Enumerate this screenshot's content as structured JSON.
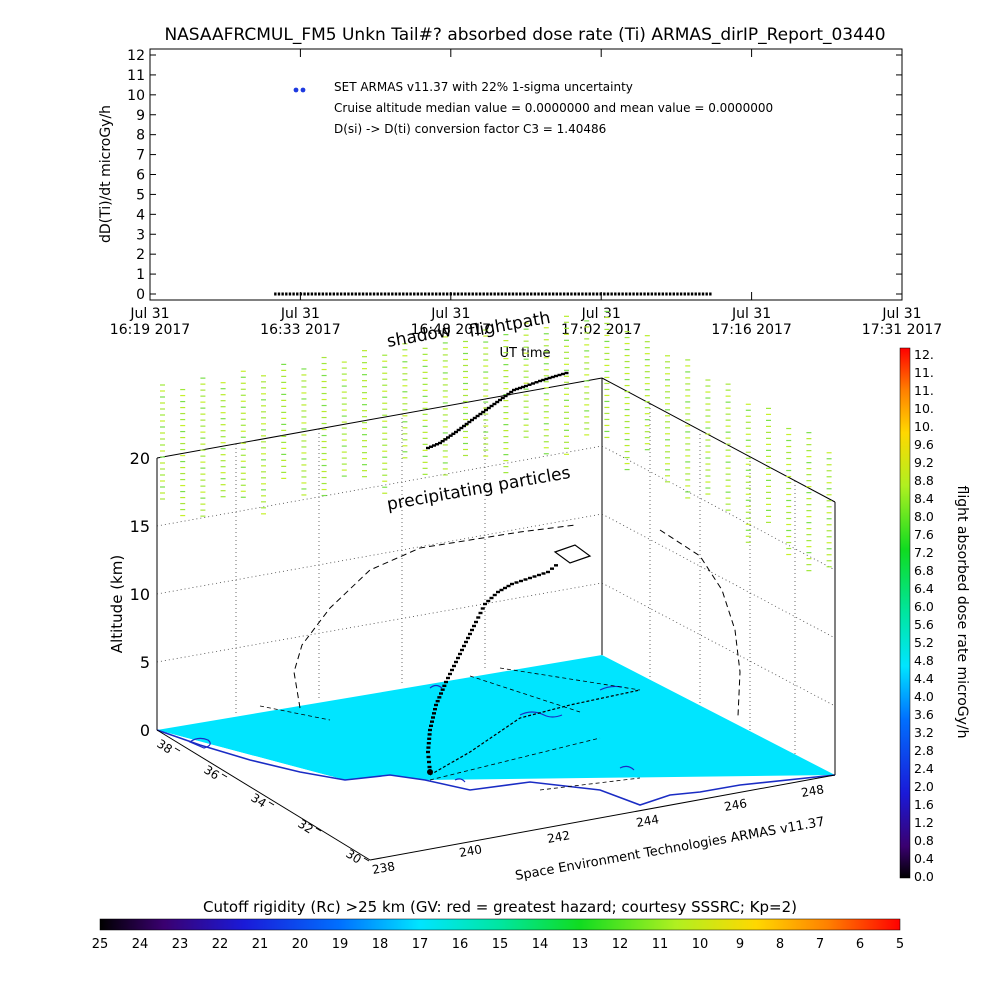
{
  "title": "NASAAFRCMUL_FM5 Unkn Tail#? absorbed dose rate (Ti) ARMAS_dirIP_Report_03440",
  "colors": {
    "sea": "#00e5ff",
    "coast": "#1a2cc4",
    "particles": "#b7ef2a",
    "flightpath": "#000000"
  },
  "chart_data": [
    {
      "type": "scatter",
      "title": "NASAAFRCMUL_FM5 Unkn Tail#? absorbed dose rate (Ti) ARMAS_dirIP_Report_03440",
      "xlabel": "UT time",
      "ylabel": "dD(Ti)/dt microGy/h",
      "ylim": [
        0,
        12
      ],
      "yticks": [
        "0",
        "1",
        "2",
        "3",
        "4",
        "5",
        "6",
        "7",
        "8",
        "9",
        "10",
        "11",
        "12"
      ],
      "xticks": [
        {
          "top": "Jul 31",
          "bottom": "16:19 2017"
        },
        {
          "top": "Jul 31",
          "bottom": "16:33 2017"
        },
        {
          "top": "Jul 31",
          "bottom": "16:48 2017"
        },
        {
          "top": "Jul 31",
          "bottom": "17:02 2017"
        },
        {
          "top": "Jul 31",
          "bottom": "17:16 2017"
        },
        {
          "top": "Jul 31",
          "bottom": "17:31 2017"
        }
      ],
      "xlim_minutes_after_1619": [
        0,
        72
      ],
      "series": [
        {
          "name": "SET ARMAS v11.37 with 22% 1-sigma uncertainty",
          "x_start": 12,
          "x_end": 54,
          "value": 0.0
        }
      ],
      "annotations": [
        "Cruise altitude median value = 0.0000000 and mean value = 0.0000000",
        "D(si) -> D(ti) conversion factor C3 = 1.40486"
      ]
    },
    {
      "type": "scatter",
      "zlabel": "Altitude (km)",
      "zticks": [
        "0",
        "5",
        "10",
        "15",
        "20"
      ],
      "lat_ticks": [
        "30",
        "32",
        "34",
        "36",
        "38"
      ],
      "lon_ticks": [
        "238",
        "240",
        "242",
        "244",
        "246",
        "248"
      ],
      "labels": {
        "shadow": "shadow",
        "flightpath": "flightpath",
        "particles": "precipitating particles",
        "credit": "Space Environment Technologies ARMAS v11.37"
      },
      "dose_colorbar": {
        "label": "flight absorbed dose rate microGy/h",
        "ticks": [
          "12.",
          "11.",
          "11.",
          "10.",
          "10.",
          "9.6",
          "9.2",
          "8.8",
          "8.4",
          "8.0",
          "7.6",
          "7.2",
          "6.8",
          "6.4",
          "6.0",
          "5.6",
          "5.2",
          "4.8",
          "4.4",
          "4.0",
          "3.6",
          "3.2",
          "2.8",
          "2.4",
          "2.0",
          "1.6",
          "1.2",
          "0.8",
          "0.4",
          "0.0"
        ]
      },
      "cutoff_colorbar": {
        "title": "Cutoff rigidity (Rc) >25 km (GV: red = greatest hazard; courtesy SSSRC; Kp=2)",
        "ticks": [
          "25",
          "24",
          "23",
          "22",
          "21",
          "20",
          "19",
          "18",
          "17",
          "16",
          "15",
          "14",
          "13",
          "12",
          "11",
          "10",
          "9",
          "8",
          "7",
          "6",
          "5"
        ]
      }
    }
  ]
}
